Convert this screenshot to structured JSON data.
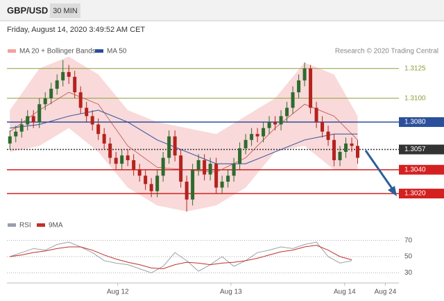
{
  "header": {
    "symbol": "GBP/USD",
    "interval": "30 MIN",
    "timestamp": "Friday, August 14, 2020 3:49:52 AM CET"
  },
  "chart_data": [
    {
      "type": "candlestick",
      "source": "Research © 2020 Trading Central",
      "xlim": [
        -0.5,
        66
      ],
      "ylim": [
        1.3002,
        1.3133
      ],
      "up_color": "#2e6b2e",
      "down_color": "#b3231f",
      "open": [
        1.3062,
        1.3068,
        1.3072,
        1.3078,
        1.3085,
        1.308,
        1.3095,
        1.31,
        1.3108,
        1.3115,
        1.3122,
        1.3118,
        1.3105,
        1.3092,
        1.3085,
        1.3078,
        1.307,
        1.3062,
        1.305,
        1.3045,
        1.3052,
        1.3048,
        1.304,
        1.3035,
        1.3028,
        1.3022,
        1.3035,
        1.305,
        1.3068,
        1.3052,
        1.303,
        1.3015,
        1.304,
        1.3048,
        1.3036,
        1.3045,
        1.3025,
        1.303,
        1.3035,
        1.3045,
        1.3058,
        1.3065,
        1.307,
        1.3068,
        1.3075,
        1.308,
        1.3078,
        1.3085,
        1.3092,
        1.3105,
        1.3115,
        1.3125,
        1.3092,
        1.308,
        1.3072,
        1.3065,
        1.3048,
        1.3055,
        1.3062,
        1.306
      ],
      "high": [
        1.3073,
        1.3077,
        1.3083,
        1.309,
        1.309,
        1.31,
        1.3105,
        1.3113,
        1.312,
        1.3132,
        1.3128,
        1.3123,
        1.311,
        1.3097,
        1.309,
        1.3083,
        1.3075,
        1.3067,
        1.3055,
        1.3057,
        1.3057,
        1.3053,
        1.3045,
        1.304,
        1.3033,
        1.304,
        1.3055,
        1.3073,
        1.3073,
        1.3057,
        1.3035,
        1.3045,
        1.3053,
        1.3053,
        1.305,
        1.305,
        1.3035,
        1.304,
        1.305,
        1.3063,
        1.307,
        1.3075,
        1.3075,
        1.308,
        1.3085,
        1.3085,
        1.309,
        1.3097,
        1.311,
        1.312,
        1.313,
        1.3128,
        1.3097,
        1.3085,
        1.3077,
        1.307,
        1.306,
        1.3067,
        1.3067,
        1.3065
      ],
      "low": [
        1.3057,
        1.3063,
        1.3067,
        1.3073,
        1.3075,
        1.3075,
        1.309,
        1.3095,
        1.3103,
        1.311,
        1.3112,
        1.31,
        1.3087,
        1.308,
        1.3073,
        1.3065,
        1.3057,
        1.3045,
        1.304,
        1.304,
        1.3043,
        1.3035,
        1.303,
        1.3023,
        1.3017,
        1.3017,
        1.303,
        1.3045,
        1.3047,
        1.3025,
        1.3005,
        1.301,
        1.3035,
        1.3031,
        1.3031,
        1.302,
        1.302,
        1.3025,
        1.303,
        1.304,
        1.3053,
        1.306,
        1.3063,
        1.3063,
        1.307,
        1.3073,
        1.3073,
        1.308,
        1.3087,
        1.31,
        1.311,
        1.3087,
        1.3075,
        1.3067,
        1.306,
        1.3043,
        1.3043,
        1.305,
        1.3055,
        1.3045
      ],
      "close": [
        1.3068,
        1.3072,
        1.3078,
        1.3085,
        1.308,
        1.3095,
        1.31,
        1.3108,
        1.3115,
        1.3122,
        1.3118,
        1.3105,
        1.3092,
        1.3085,
        1.3078,
        1.307,
        1.3062,
        1.305,
        1.3045,
        1.3052,
        1.3048,
        1.304,
        1.3035,
        1.3028,
        1.3022,
        1.3035,
        1.305,
        1.3068,
        1.3052,
        1.303,
        1.3015,
        1.304,
        1.3048,
        1.3036,
        1.3045,
        1.3025,
        1.303,
        1.3035,
        1.3045,
        1.3058,
        1.3065,
        1.307,
        1.3068,
        1.3075,
        1.308,
        1.3078,
        1.3085,
        1.3092,
        1.3105,
        1.3115,
        1.3125,
        1.3092,
        1.308,
        1.3072,
        1.3065,
        1.3048,
        1.3055,
        1.3062,
        1.306,
        1.305
      ],
      "band": {
        "name": "MA 20 + Bollinger Bands",
        "color": "#f7c9c9",
        "line_color": "#b8504a",
        "x": [
          0,
          5,
          10,
          15,
          20,
          25,
          30,
          35,
          40,
          45,
          50,
          55,
          59
        ],
        "upper": [
          1.309,
          1.3125,
          1.3135,
          1.312,
          1.309,
          1.308,
          1.3075,
          1.307,
          1.3085,
          1.31,
          1.313,
          1.312,
          1.3085
        ],
        "lower": [
          1.3055,
          1.306,
          1.3075,
          1.3055,
          1.3025,
          1.301,
          1.3005,
          1.301,
          1.3025,
          1.3055,
          1.306,
          1.304,
          1.304
        ],
        "middle": [
          1.3072,
          1.309,
          1.3105,
          1.3095,
          1.306,
          1.3042,
          1.304,
          1.3038,
          1.305,
          1.3075,
          1.3095,
          1.3085,
          1.3065
        ]
      },
      "ma": {
        "name": "MA 50",
        "color": "#2b4f9a",
        "x": [
          0,
          5,
          10,
          15,
          20,
          25,
          30,
          35,
          40,
          45,
          50,
          55,
          59
        ],
        "values": [
          1.3075,
          1.3078,
          1.3085,
          1.309,
          1.308,
          1.3065,
          1.3055,
          1.3045,
          1.3045,
          1.3055,
          1.3065,
          1.307,
          1.307
        ]
      },
      "levels": [
        {
          "value": 1.3125,
          "label": "1.3125",
          "color": "#8ca03a",
          "boxed": false
        },
        {
          "value": 1.31,
          "label": "1.3100",
          "color": "#8ca03a",
          "boxed": false
        },
        {
          "value": 1.308,
          "label": "1.3080",
          "color": "#2b4f9a",
          "boxed": true
        },
        {
          "value": 1.3057,
          "label": "1.3057",
          "color": "#333333",
          "boxed": true
        },
        {
          "value": 1.304,
          "label": "1.3040",
          "color": "#d42020",
          "boxed": true
        },
        {
          "value": 1.302,
          "label": "1.3020",
          "color": "#d42020",
          "boxed": true
        }
      ]
    },
    {
      "type": "line",
      "xlim": [
        -0.5,
        66
      ],
      "ylim": [
        20,
        80
      ],
      "yticks": [
        70,
        50,
        30
      ],
      "xticks": [
        {
          "value": 18.3,
          "label": "Aug 12"
        },
        {
          "value": 37.5,
          "label": "Aug 13"
        },
        {
          "value": 56.8,
          "label": "Aug 14"
        },
        {
          "value": 63.7,
          "label": "Aug 24"
        }
      ],
      "x": [
        0,
        2,
        4,
        6,
        8,
        10,
        12,
        14,
        16,
        18,
        20,
        22,
        24,
        26,
        28,
        30,
        32,
        34,
        36,
        38,
        40,
        42,
        44,
        46,
        48,
        50,
        52,
        54,
        56,
        58
      ],
      "series": [
        {
          "name": "RSI",
          "color": "#9aa0aa",
          "values": [
            50,
            55,
            60,
            58,
            65,
            68,
            62,
            55,
            45,
            42,
            40,
            35,
            30,
            38,
            55,
            45,
            32,
            40,
            50,
            38,
            45,
            55,
            58,
            62,
            60,
            65,
            68,
            50,
            42,
            45
          ]
        },
        {
          "name": "9MA",
          "color": "#c0302a",
          "values": [
            50,
            52,
            55,
            57,
            60,
            62,
            62,
            58,
            52,
            47,
            43,
            40,
            36,
            35,
            40,
            43,
            42,
            40,
            42,
            43,
            45,
            48,
            52,
            56,
            58,
            62,
            64,
            58,
            50,
            46
          ]
        }
      ]
    }
  ]
}
